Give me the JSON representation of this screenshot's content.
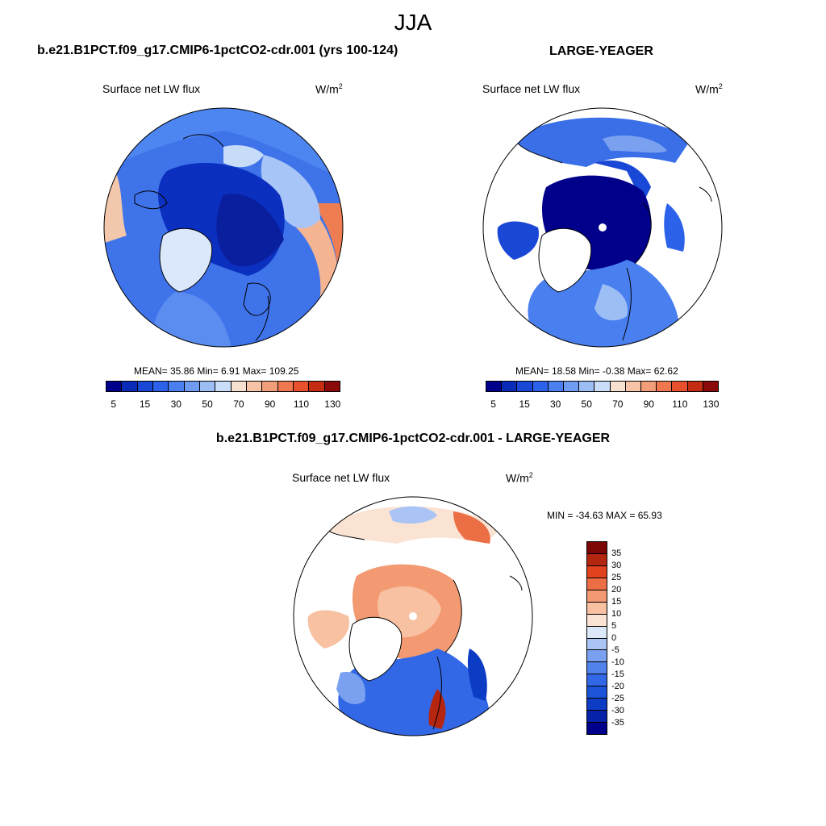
{
  "page_title": "JJA",
  "panels": {
    "left": {
      "title": "b.e21.B1PCT.f09_g17.CMIP6-1pctCO2-cdr.001 (yrs 100-124)",
      "variable": "Surface net LW flux",
      "unit_base": "W/m",
      "unit_exp": "2",
      "stats": "MEAN=  35.86  Min=   6.91  Max= 109.25",
      "tick_labels": [
        "5",
        "15",
        "30",
        "50",
        "70",
        "90",
        "110",
        "130"
      ]
    },
    "right": {
      "title": "LARGE-YEAGER",
      "variable": "Surface net LW flux",
      "unit_base": "W/m",
      "unit_exp": "2",
      "stats": "MEAN=  18.58  Min=  -0.38  Max=  62.62",
      "tick_labels": [
        "5",
        "15",
        "30",
        "50",
        "70",
        "90",
        "110",
        "130"
      ]
    },
    "diff": {
      "title": "b.e21.B1PCT.f09_g17.CMIP6-1pctCO2-cdr.001 - LARGE-YEAGER",
      "variable": "Surface net LW flux",
      "unit_base": "W/m",
      "unit_exp": "2",
      "stats": "MIN = -34.63 MAX =  65.93",
      "tick_labels": [
        "-35",
        "-30",
        "-25",
        "-20",
        "-15",
        "-10",
        "-5",
        "0",
        "5",
        "10",
        "15",
        "20",
        "25",
        "30",
        "35"
      ]
    }
  },
  "colors": {
    "abs_scale": [
      "#00008b",
      "#0a2bb8",
      "#1947d6",
      "#2c62ea",
      "#4a7ff0",
      "#6f9cf2",
      "#9dbdf5",
      "#c9dcf8",
      "#f7e0cf",
      "#f6c3a6",
      "#f29e79",
      "#ef7850",
      "#e8512d",
      "#c52d12",
      "#8b0a0a"
    ],
    "diff_scale": [
      "#00008b",
      "#0622a8",
      "#0d3cc4",
      "#1b53d9",
      "#3268e6",
      "#5182ec",
      "#7aa0f0",
      "#a9c4f5",
      "#dce8f9",
      "#fbe3d3",
      "#f8c1a2",
      "#f39a72",
      "#ec6e44",
      "#e0431e",
      "#b4260f",
      "#7d0707"
    ]
  }
}
